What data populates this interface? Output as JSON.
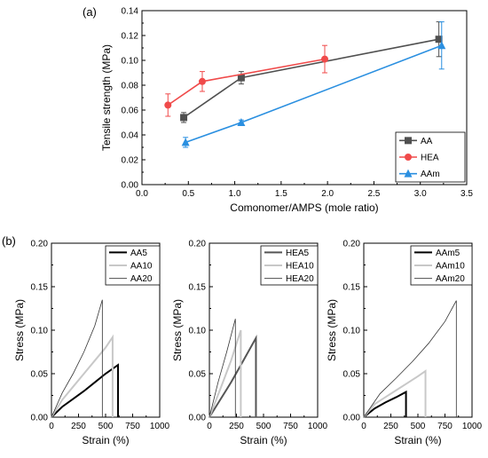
{
  "chart_data": [
    {
      "panel_label": "(a)",
      "type": "line",
      "xlabel": "Comonomer/AMPS (mole ratio)",
      "ylabel": "Tensile strength (MPa)",
      "xlim": [
        0.0,
        3.5
      ],
      "ylim": [
        0.0,
        0.14
      ],
      "xticks": [
        "0.0",
        "0.5",
        "1.0",
        "1.5",
        "2.0",
        "2.5",
        "3.0",
        "3.5"
      ],
      "yticks": [
        "0.00",
        "0.02",
        "0.04",
        "0.06",
        "0.08",
        "0.10",
        "0.12",
        "0.14"
      ],
      "legend_position": "lower-right",
      "series": [
        {
          "name": "AA",
          "color": "#505050",
          "marker": "square",
          "x": [
            0.45,
            1.07,
            3.2
          ],
          "y": [
            0.054,
            0.086,
            0.117
          ],
          "err": [
            0.004,
            0.005,
            0.014
          ]
        },
        {
          "name": "HEA",
          "color": "#f04a4a",
          "marker": "circle",
          "x": [
            0.28,
            0.65,
            1.97
          ],
          "y": [
            0.064,
            0.083,
            0.101
          ],
          "err": [
            0.009,
            0.008,
            0.011
          ]
        },
        {
          "name": "AAm",
          "color": "#2a8fe0",
          "marker": "triangle",
          "x": [
            0.47,
            1.07,
            3.23
          ],
          "y": [
            0.034,
            0.05,
            0.112
          ],
          "err": [
            0.004,
            0.002,
            0.019
          ]
        }
      ]
    },
    {
      "panel_label": "(b)",
      "type": "line",
      "xlabel": "Strain (%)",
      "ylabel": "Stress (MPa)",
      "xlim": [
        0,
        1000
      ],
      "ylim": [
        0.0,
        0.2
      ],
      "xticks": [
        "0",
        "250",
        "500",
        "750",
        "1000"
      ],
      "yticks": [
        "0.00",
        "0.05",
        "0.10",
        "0.15",
        "0.20"
      ],
      "legend_position": "top-right",
      "series": [
        {
          "name": "AA5",
          "color": "#000000",
          "width": 2,
          "break": 615,
          "peak": 0.06,
          "x": [
            0,
            100,
            200,
            300,
            400,
            500,
            615
          ],
          "y": [
            0.0,
            0.012,
            0.021,
            0.03,
            0.04,
            0.05,
            0.06
          ]
        },
        {
          "name": "AA10",
          "color": "#c8c8c8",
          "width": 2,
          "break": 565,
          "peak": 0.092,
          "x": [
            0,
            100,
            200,
            300,
            400,
            500,
            565
          ],
          "y": [
            0.0,
            0.02,
            0.035,
            0.05,
            0.065,
            0.08,
            0.092
          ]
        },
        {
          "name": "AA20",
          "color": "#333333",
          "width": 0.8,
          "break": 470,
          "peak": 0.135,
          "x": [
            0,
            100,
            200,
            300,
            400,
            470
          ],
          "y": [
            0.0,
            0.028,
            0.05,
            0.075,
            0.105,
            0.135
          ]
        }
      ]
    },
    {
      "type": "line",
      "xlabel": "Strain (%)",
      "ylabel": "Stress (MPa)",
      "xlim": [
        0,
        1000
      ],
      "ylim": [
        0.0,
        0.2
      ],
      "xticks": [
        "0",
        "250",
        "500",
        "750",
        "1000"
      ],
      "yticks": [
        "0.00",
        "0.05",
        "0.10",
        "0.15",
        "0.20"
      ],
      "legend_position": "top-right",
      "series": [
        {
          "name": "HEA5",
          "color": "#555555",
          "width": 2,
          "break": 430,
          "peak": 0.091,
          "x": [
            0,
            100,
            200,
            300,
            430
          ],
          "y": [
            0.0,
            0.02,
            0.04,
            0.062,
            0.091
          ]
        },
        {
          "name": "HEA10",
          "color": "#c8c8c8",
          "width": 2,
          "break": 290,
          "peak": 0.1,
          "x": [
            0,
            100,
            200,
            290
          ],
          "y": [
            0.0,
            0.032,
            0.065,
            0.1
          ]
        },
        {
          "name": "HEA20",
          "color": "#333333",
          "width": 0.8,
          "break": 240,
          "peak": 0.113,
          "x": [
            0,
            80,
            160,
            240
          ],
          "y": [
            0.0,
            0.04,
            0.075,
            0.113
          ]
        }
      ]
    },
    {
      "type": "line",
      "xlabel": "Strain (%)",
      "ylabel": "Stress (MPa)",
      "xlim": [
        0,
        1000
      ],
      "ylim": [
        0.0,
        0.2
      ],
      "xticks": [
        "0",
        "250",
        "500",
        "750",
        "1000"
      ],
      "yticks": [
        "0.00",
        "0.05",
        "0.10",
        "0.15",
        "0.20"
      ],
      "legend_position": "top-right",
      "series": [
        {
          "name": "AAm5",
          "color": "#000000",
          "width": 2,
          "break": 390,
          "peak": 0.029,
          "x": [
            0,
            100,
            200,
            300,
            390
          ],
          "y": [
            0.0,
            0.01,
            0.017,
            0.023,
            0.029
          ]
        },
        {
          "name": "AAm10",
          "color": "#c8c8c8",
          "width": 2,
          "break": 570,
          "peak": 0.053,
          "x": [
            0,
            100,
            200,
            300,
            400,
            500,
            570
          ],
          "y": [
            0.0,
            0.015,
            0.023,
            0.031,
            0.039,
            0.047,
            0.053
          ]
        },
        {
          "name": "AAm20",
          "color": "#333333",
          "width": 0.8,
          "break": 855,
          "peak": 0.134,
          "x": [
            0,
            150,
            300,
            450,
            600,
            750,
            855
          ],
          "y": [
            0.0,
            0.027,
            0.045,
            0.064,
            0.085,
            0.11,
            0.134
          ]
        }
      ]
    }
  ]
}
